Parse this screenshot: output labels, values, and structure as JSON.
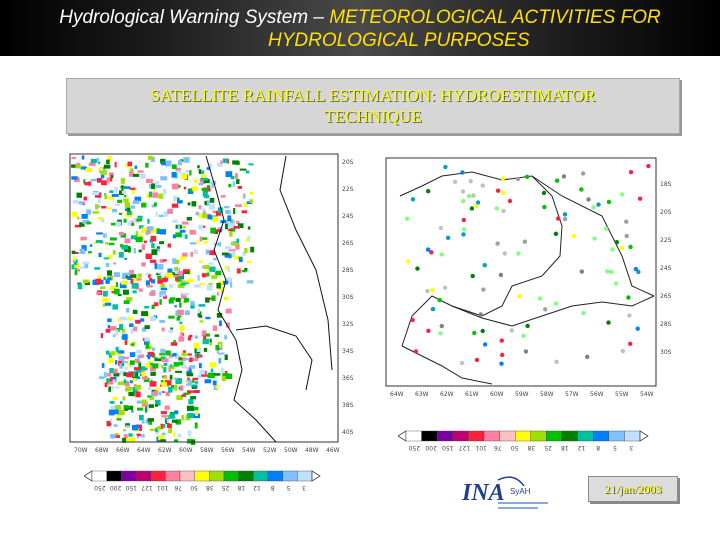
{
  "header": {
    "title_prefix": "Hydrological Warning System – ",
    "title_highlight": "METEOROLOGICAL ACTIVITIES FOR",
    "title_line2": "HYDROLOGICAL PURPOSES"
  },
  "section_title": {
    "line1": "SATELLITE RAINFALL ESTIMATION: HYDROESTIMATOR",
    "line2": "TECHNIQUE"
  },
  "left_map": {
    "y_ticks": [
      "20S",
      "22S",
      "24S",
      "26S",
      "28S",
      "30S",
      "32S",
      "34S",
      "36S",
      "38S",
      "40S"
    ],
    "x_ticks": [
      "70W",
      "68W",
      "66W",
      "64W",
      "62W",
      "60W",
      "58W",
      "56W",
      "54W",
      "52W",
      "50W",
      "48W",
      "46W"
    ]
  },
  "right_map": {
    "y_ticks": [
      "18S",
      "20S",
      "22S",
      "24S",
      "26S",
      "28S",
      "30S"
    ],
    "x_ticks": [
      "64W",
      "63W",
      "62W",
      "61W",
      "60W",
      "59W",
      "58W",
      "57W",
      "56W",
      "55W",
      "54W"
    ]
  },
  "left_colorbar": {
    "labels": [
      "250",
      "200",
      "150",
      "127",
      "101",
      "76",
      "50",
      "38",
      "25",
      "18",
      "12",
      "8",
      "5",
      "3"
    ]
  },
  "right_colorbar": {
    "labels": [
      "250",
      "200",
      "150",
      "127",
      "101",
      "76",
      "50",
      "38",
      "25",
      "18",
      "12",
      "8",
      "5",
      "3"
    ]
  },
  "logo": {
    "text_main": "INA",
    "text_sub": "SyAH"
  },
  "date_stamp": "21/jan/2003",
  "colors": {
    "highlight_yellow": "#ffe000",
    "title_box_bg": "#d6d6d6",
    "rain_scale": [
      "#ffffff",
      "#000000",
      "#7a00a0",
      "#c00070",
      "#ff2040",
      "#ff80a0",
      "#ffc0c0",
      "#ffff00",
      "#a0e000",
      "#00c000",
      "#008000",
      "#00c0a0",
      "#0080ff",
      "#80c0ff",
      "#c0e0ff"
    ]
  }
}
